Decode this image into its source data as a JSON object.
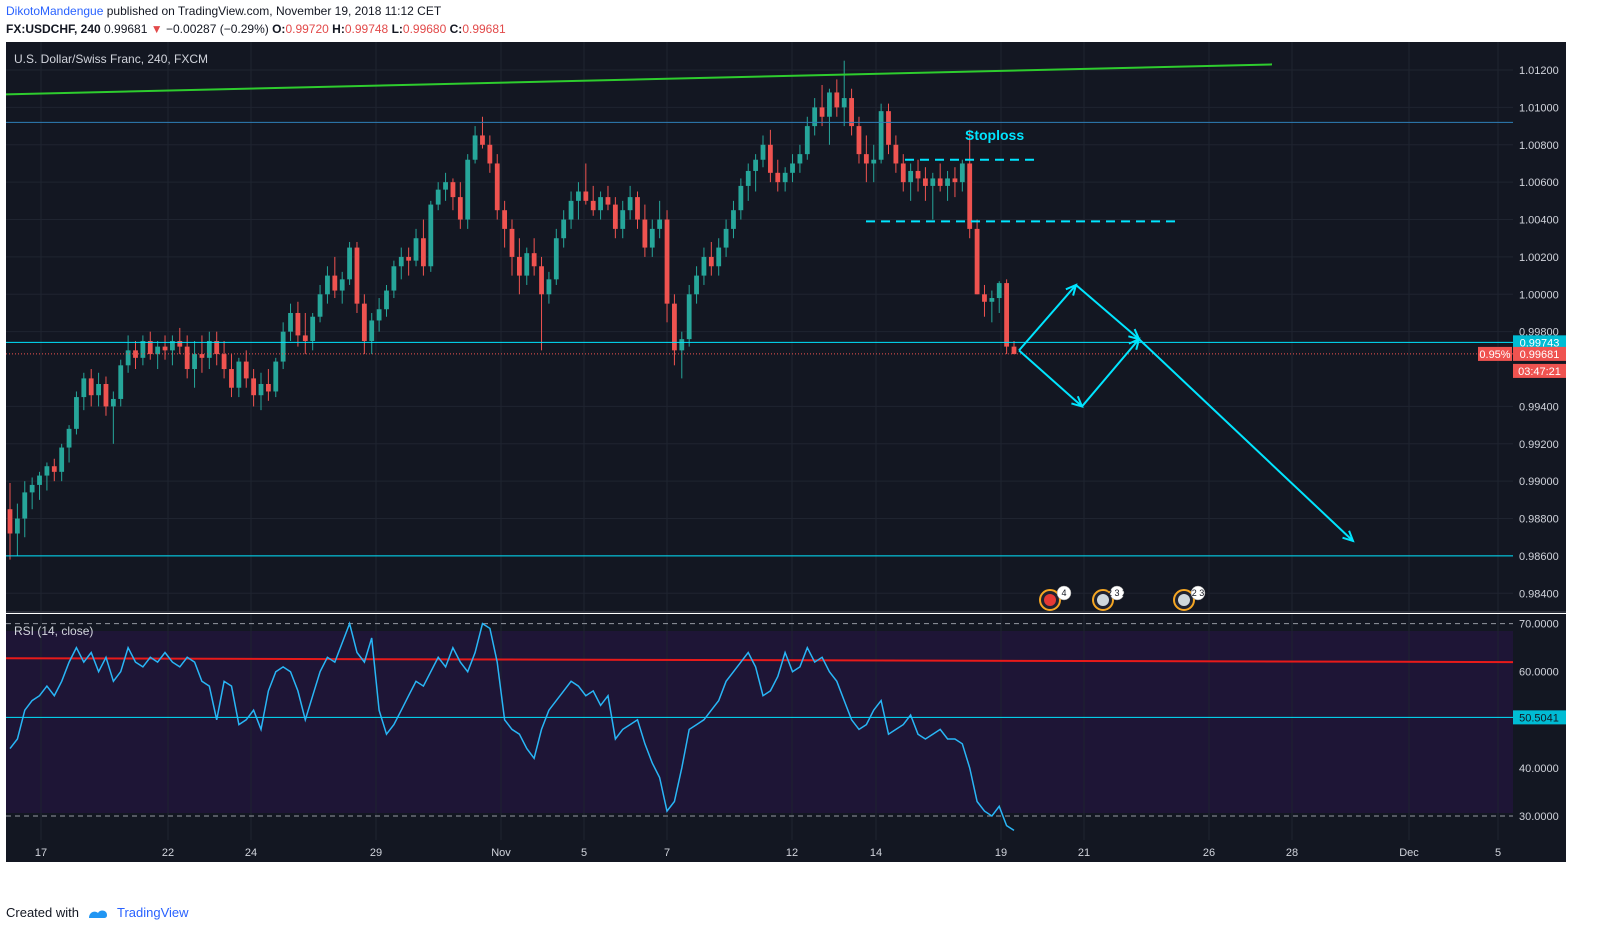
{
  "header": {
    "author": "DikotoMandengue",
    "published": "published on TradingView.com, November 19, 2018 11:12 CET",
    "symbol": "FX:USDCHF, 240",
    "last": "0.99681",
    "change": "−0.00287 (−0.29%)",
    "o_label": "O:",
    "o_value": "0.99720",
    "h_label": "H:",
    "h_value": "0.99748",
    "l_label": "L:",
    "l_value": "0.99680",
    "c_label": "C:",
    "c_value": "0.99681"
  },
  "chart_data": [
    {
      "type": "candlestick",
      "title": "U.S. Dollar/Swiss Franc, 240, FXCM",
      "ylim": [
        0.983,
        1.0135
      ],
      "yticks": [
        "1.01200",
        "1.01000",
        "1.00800",
        "1.00600",
        "1.00400",
        "1.00200",
        "1.00000",
        "0.99800",
        "0.99400",
        "0.99200",
        "0.99000",
        "0.98800",
        "0.98600",
        "0.98400"
      ],
      "x_ticks": [
        "17",
        "22",
        "24",
        "29",
        "Nov",
        "5",
        "7",
        "12",
        "14",
        "19",
        "21",
        "26",
        "28",
        "Dec",
        "5"
      ],
      "price_labels": {
        "level": "0.99743",
        "last": "0.99681",
        "pct": "0.95%",
        "countdown": "03:47:21"
      },
      "annotations": {
        "stoploss": "Stoploss"
      },
      "event_badges": [
        "4",
        "2 3 2",
        "2 3"
      ],
      "ohlc_series": [
        [
          0.9885,
          0.9899,
          0.9858,
          0.9872
        ],
        [
          0.9872,
          0.9888,
          0.986,
          0.988
        ],
        [
          0.988,
          0.99,
          0.987,
          0.9894
        ],
        [
          0.9894,
          0.9902,
          0.9885,
          0.9898
        ],
        [
          0.9898,
          0.9905,
          0.989,
          0.9903
        ],
        [
          0.9903,
          0.991,
          0.9895,
          0.9908
        ],
        [
          0.9908,
          0.9912,
          0.99,
          0.9905
        ],
        [
          0.9905,
          0.992,
          0.99,
          0.9918
        ],
        [
          0.9918,
          0.993,
          0.991,
          0.9928
        ],
        [
          0.9928,
          0.9948,
          0.9925,
          0.9945
        ],
        [
          0.9945,
          0.9958,
          0.9938,
          0.9955
        ],
        [
          0.9955,
          0.996,
          0.994,
          0.9946
        ],
        [
          0.9946,
          0.9958,
          0.994,
          0.9952
        ],
        [
          0.9952,
          0.9956,
          0.9935,
          0.994
        ],
        [
          0.994,
          0.9948,
          0.992,
          0.9944
        ],
        [
          0.9944,
          0.9965,
          0.994,
          0.9962
        ],
        [
          0.9962,
          0.9978,
          0.9958,
          0.997
        ],
        [
          0.997,
          0.9975,
          0.996,
          0.9966
        ],
        [
          0.9966,
          0.9978,
          0.9962,
          0.9975
        ],
        [
          0.9975,
          0.998,
          0.9965,
          0.9968
        ],
        [
          0.9968,
          0.9975,
          0.996,
          0.9972
        ],
        [
          0.9972,
          0.9978,
          0.9965,
          0.997
        ],
        [
          0.997,
          0.9978,
          0.9962,
          0.9975
        ],
        [
          0.9975,
          0.9982,
          0.9968,
          0.9972
        ],
        [
          0.9972,
          0.9978,
          0.9955,
          0.996
        ],
        [
          0.996,
          0.9975,
          0.995,
          0.9968
        ],
        [
          0.9968,
          0.9978,
          0.9958,
          0.9966
        ],
        [
          0.9966,
          0.998,
          0.996,
          0.9975
        ],
        [
          0.9975,
          0.998,
          0.9962,
          0.9968
        ],
        [
          0.9968,
          0.9975,
          0.9955,
          0.996
        ],
        [
          0.996,
          0.9968,
          0.9945,
          0.995
        ],
        [
          0.995,
          0.9966,
          0.9945,
          0.9964
        ],
        [
          0.9964,
          0.997,
          0.995,
          0.9955
        ],
        [
          0.9955,
          0.996,
          0.994,
          0.9946
        ],
        [
          0.9946,
          0.9958,
          0.9938,
          0.9952
        ],
        [
          0.9952,
          0.996,
          0.9943,
          0.9948
        ],
        [
          0.9948,
          0.9966,
          0.9945,
          0.9964
        ],
        [
          0.9964,
          0.9985,
          0.996,
          0.998
        ],
        [
          0.998,
          0.9995,
          0.9975,
          0.999
        ],
        [
          0.999,
          0.9996,
          0.9972,
          0.9978
        ],
        [
          0.9978,
          0.999,
          0.9968,
          0.9975
        ],
        [
          0.9975,
          0.999,
          0.997,
          0.9988
        ],
        [
          0.9988,
          1.0005,
          0.9985,
          1.0
        ],
        [
          1.0,
          1.0015,
          0.9995,
          1.001
        ],
        [
          1.001,
          1.002,
          0.9998,
          1.0002
        ],
        [
          1.0002,
          1.0012,
          0.9995,
          1.0008
        ],
        [
          1.0008,
          1.0028,
          1.0005,
          1.0025
        ],
        [
          1.0025,
          1.0028,
          0.999,
          0.9995
        ],
        [
          0.9995,
          1.0,
          0.9968,
          0.9975
        ],
        [
          0.9975,
          0.999,
          0.9968,
          0.9986
        ],
        [
          0.9986,
          0.9998,
          0.998,
          0.9992
        ],
        [
          0.9992,
          1.0005,
          0.9988,
          1.0002
        ],
        [
          1.0002,
          1.0018,
          0.9998,
          1.0015
        ],
        [
          1.0015,
          1.0025,
          1.0008,
          1.002
        ],
        [
          1.002,
          1.0025,
          1.001,
          1.0018
        ],
        [
          1.0018,
          1.0035,
          1.0015,
          1.003
        ],
        [
          1.003,
          1.004,
          1.001,
          1.0015
        ],
        [
          1.0015,
          1.005,
          1.0012,
          1.0048
        ],
        [
          1.0048,
          1.006,
          1.0045,
          1.0056
        ],
        [
          1.0056,
          1.0065,
          1.005,
          1.006
        ],
        [
          1.006,
          1.0062,
          1.0045,
          1.0052
        ],
        [
          1.0052,
          1.006,
          1.0035,
          1.004
        ],
        [
          1.004,
          1.0075,
          1.0035,
          1.0072
        ],
        [
          1.0072,
          1.009,
          1.007,
          1.0085
        ],
        [
          1.0085,
          1.0095,
          1.0078,
          1.008
        ],
        [
          1.008,
          1.0085,
          1.0065,
          1.007
        ],
        [
          1.007,
          1.0075,
          1.004,
          1.0045
        ],
        [
          1.0045,
          1.005,
          1.0025,
          1.0035
        ],
        [
          1.0035,
          1.004,
          1.001,
          1.002
        ],
        [
          1.002,
          1.003,
          1.0,
          1.001
        ],
        [
          1.001,
          1.0025,
          1.0005,
          1.0022
        ],
        [
          1.0022,
          1.003,
          1.001,
          1.0015
        ],
        [
          1.0015,
          1.002,
          0.997,
          1.0
        ],
        [
          1.0,
          1.0012,
          0.9995,
          1.0008
        ],
        [
          1.0008,
          1.0035,
          1.0005,
          1.003
        ],
        [
          1.003,
          1.0045,
          1.0025,
          1.004
        ],
        [
          1.004,
          1.0055,
          1.0035,
          1.005
        ],
        [
          1.005,
          1.006,
          1.004,
          1.0055
        ],
        [
          1.0055,
          1.007,
          1.0048,
          1.005
        ],
        [
          1.005,
          1.0058,
          1.0042,
          1.0045
        ],
        [
          1.0045,
          1.0055,
          1.004,
          1.0052
        ],
        [
          1.0052,
          1.0058,
          1.0045,
          1.0048
        ],
        [
          1.0048,
          1.0052,
          1.003,
          1.0035
        ],
        [
          1.0035,
          1.005,
          1.003,
          1.0045
        ],
        [
          1.0045,
          1.0058,
          1.004,
          1.0052
        ],
        [
          1.0052,
          1.0055,
          1.0035,
          1.004
        ],
        [
          1.004,
          1.0048,
          1.002,
          1.0025
        ],
        [
          1.0025,
          1.004,
          1.002,
          1.0035
        ],
        [
          1.0035,
          1.005,
          1.003,
          1.004
        ],
        [
          1.004,
          1.0045,
          0.9985,
          0.9995
        ],
        [
          0.9995,
          1.0,
          0.9962,
          0.997
        ],
        [
          0.997,
          0.998,
          0.9955,
          0.9976
        ],
        [
          0.9976,
          1.0005,
          0.9972,
          1.0
        ],
        [
          1.0,
          1.0015,
          0.9995,
          1.001
        ],
        [
          1.001,
          1.0025,
          1.0005,
          1.002
        ],
        [
          1.002,
          1.0028,
          1.001,
          1.0015
        ],
        [
          1.0015,
          1.003,
          1.001,
          1.0025
        ],
        [
          1.0025,
          1.004,
          1.002,
          1.0035
        ],
        [
          1.0035,
          1.005,
          1.003,
          1.0045
        ],
        [
          1.0045,
          1.0062,
          1.004,
          1.0058
        ],
        [
          1.0058,
          1.007,
          1.005,
          1.0066
        ],
        [
          1.0066,
          1.0075,
          1.0055,
          1.0072
        ],
        [
          1.0072,
          1.0085,
          1.0068,
          1.008
        ],
        [
          1.008,
          1.0088,
          1.006,
          1.0065
        ],
        [
          1.0065,
          1.0072,
          1.0055,
          1.006
        ],
        [
          1.006,
          1.0068,
          1.0055,
          1.0065
        ],
        [
          1.0065,
          1.0075,
          1.006,
          1.007
        ],
        [
          1.007,
          1.008,
          1.0065,
          1.0075
        ],
        [
          1.0075,
          1.0095,
          1.0072,
          1.009
        ],
        [
          1.009,
          1.0105,
          1.0085,
          1.01
        ],
        [
          1.01,
          1.0112,
          1.009,
          1.0095
        ],
        [
          1.0095,
          1.011,
          1.008,
          1.0108
        ],
        [
          1.0108,
          1.0115,
          1.0095,
          1.01
        ],
        [
          1.01,
          1.0125,
          1.009,
          1.0105
        ],
        [
          1.0105,
          1.011,
          1.0085,
          1.009
        ],
        [
          1.009,
          1.0095,
          1.007,
          1.0075
        ],
        [
          1.0075,
          1.0085,
          1.006,
          1.007
        ],
        [
          1.007,
          1.008,
          1.006,
          1.0072
        ],
        [
          1.0072,
          1.0102,
          1.007,
          1.0098
        ],
        [
          1.0098,
          1.0102,
          1.0075,
          1.008
        ],
        [
          1.008,
          1.0085,
          1.0065,
          1.007
        ],
        [
          1.007,
          1.0075,
          1.0055,
          1.006
        ],
        [
          1.006,
          1.007,
          1.005,
          1.0066
        ],
        [
          1.0066,
          1.0072,
          1.0055,
          1.0062
        ],
        [
          1.0062,
          1.0068,
          1.005,
          1.0058
        ],
        [
          1.0058,
          1.0065,
          1.004,
          1.0062
        ],
        [
          1.0062,
          1.007,
          1.0055,
          1.0058
        ],
        [
          1.0058,
          1.0066,
          1.005,
          1.0062
        ],
        [
          1.0062,
          1.0068,
          1.0052,
          1.006
        ],
        [
          1.006,
          1.0072,
          1.0055,
          1.007
        ],
        [
          1.007,
          1.0088,
          1.003,
          1.0035
        ],
        [
          1.0035,
          1.004,
          1.0,
          1.0
        ],
        [
          1.0,
          1.0005,
          0.9988,
          0.9996
        ],
        [
          0.9996,
          1.0002,
          0.9985,
          0.9998
        ],
        [
          0.9998,
          1.0007,
          0.999,
          1.0006
        ],
        [
          1.0006,
          1.0008,
          0.9968,
          0.9972
        ],
        [
          0.9972,
          0.9975,
          0.9968,
          0.9968
        ]
      ]
    },
    {
      "type": "line",
      "title": "RSI (14, close)",
      "ylim": [
        25,
        72
      ],
      "yticks": [
        "70.0000",
        "60.0000",
        "50.0000",
        "40.0000",
        "30.0000"
      ],
      "level_label": "50.5041",
      "values": [
        44,
        46,
        52,
        54,
        55,
        57,
        55,
        58,
        62,
        65,
        62,
        64,
        60,
        63,
        58,
        60,
        65,
        62,
        61,
        63,
        62,
        64,
        62,
        61,
        63,
        62,
        58,
        57,
        50,
        58,
        57,
        49,
        50,
        52,
        48,
        56,
        60,
        61,
        60,
        56,
        50,
        55,
        60,
        63,
        62,
        66,
        70,
        64,
        62,
        67,
        52,
        47,
        49,
        52,
        55,
        58,
        57,
        60,
        63,
        61,
        65,
        62,
        60,
        64,
        70,
        69,
        62,
        50,
        48,
        47,
        44,
        42,
        48,
        52,
        54,
        56,
        58,
        57,
        55,
        56,
        53,
        55,
        46,
        48,
        49,
        50,
        45,
        41,
        38,
        31,
        33,
        40,
        48,
        49,
        50,
        52,
        54,
        58,
        60,
        62,
        64,
        61,
        55,
        56,
        59,
        64,
        60,
        61,
        65,
        62,
        63,
        60,
        58,
        54,
        50,
        48,
        49,
        52,
        54,
        47,
        48,
        49,
        51,
        47,
        46,
        47,
        48,
        46,
        46,
        45,
        40,
        33,
        31,
        30,
        32,
        28,
        27
      ]
    }
  ],
  "footer": {
    "created_with": "Created with",
    "brand": "TradingView"
  },
  "colors": {
    "bg": "#131722",
    "rsi_bg": "#1e1536",
    "up": "#26a69a",
    "down": "#ef5350",
    "cyan": "#00e5ff",
    "green": "#2ecc2e",
    "red_line": "#e81a1a",
    "grid": "#1f2430",
    "axis_text": "#d1d4dc"
  }
}
